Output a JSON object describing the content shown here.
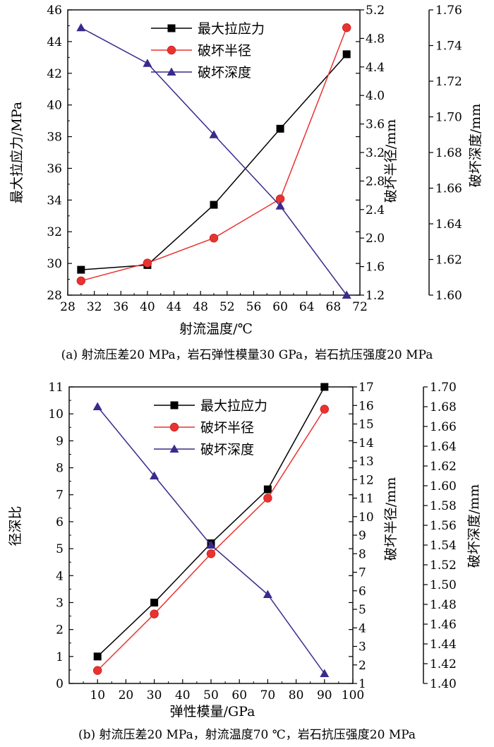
{
  "chart_data": [
    {
      "type": "line",
      "caption": "(a) 射流压差20 MPa，岩石弹性模量30 GPa，岩石抗压强度20 MPa",
      "xlabel": "射流温度/℃",
      "ylabel_left": "最大拉应力/MPa",
      "ylabel_right1": "破坏半径/mm",
      "ylabel_right2": "破坏深度/mm",
      "xlim": [
        28,
        72
      ],
      "ylim_left": [
        28,
        46
      ],
      "ylim_right1": [
        1.2,
        5.2
      ],
      "ylim_right2": [
        1.6,
        1.76
      ],
      "xticks": [
        "28",
        "32",
        "36",
        "40",
        "44",
        "48",
        "52",
        "56",
        "60",
        "64",
        "68",
        "72"
      ],
      "yticks_left": [
        "28",
        "30",
        "32",
        "34",
        "36",
        "38",
        "40",
        "42",
        "44",
        "46"
      ],
      "yticks_right1": [
        "1.2",
        "1.6",
        "2.0",
        "2.4",
        "2.8",
        "3.2",
        "3.6",
        "4.0",
        "4.4",
        "4.8",
        "5.2"
      ],
      "yticks_right2": [
        "1.60",
        "1.62",
        "1.64",
        "1.66",
        "1.68",
        "1.70",
        "1.72",
        "1.74",
        "1.76"
      ],
      "legend_position": "top-center",
      "series": [
        {
          "name": "最大拉应力",
          "axis": "left",
          "marker": "square",
          "color": "#000000",
          "x": [
            30,
            40,
            50,
            60,
            70
          ],
          "values": [
            29.6,
            29.9,
            33.7,
            38.5,
            43.2
          ]
        },
        {
          "name": "破坏半径",
          "axis": "right1",
          "marker": "circle",
          "color": "#e8332f",
          "x": [
            30,
            40,
            50,
            60,
            70
          ],
          "values": [
            1.4,
            1.65,
            2.0,
            2.55,
            4.95
          ]
        },
        {
          "name": "破坏深度",
          "axis": "right2",
          "marker": "triangle",
          "color": "#3a2a8c",
          "x": [
            30,
            40,
            50,
            60,
            70
          ],
          "values": [
            1.75,
            1.73,
            1.69,
            1.65,
            1.6
          ]
        }
      ]
    },
    {
      "type": "line",
      "caption": "(b) 射流压差20 MPa，射流温度70 ℃，岩石抗压强度20 MPa",
      "xlabel": "弹性模量/GPa",
      "ylabel_left": "径深比",
      "ylabel_right1": "破坏半径/mm",
      "ylabel_right2": "破坏深度/mm",
      "xlim": [
        0,
        100
      ],
      "ylim_left": [
        0,
        11
      ],
      "ylim_right1": [
        1,
        17
      ],
      "ylim_right2": [
        1.4,
        1.7
      ],
      "xticks": [
        "10",
        "20",
        "30",
        "40",
        "50",
        "60",
        "70",
        "80",
        "90",
        "100"
      ],
      "yticks_left": [
        "0",
        "1",
        "2",
        "3",
        "4",
        "5",
        "6",
        "7",
        "8",
        "9",
        "10",
        "11"
      ],
      "yticks_right1": [
        "1",
        "2",
        "3",
        "4",
        "5",
        "6",
        "7",
        "8",
        "9",
        "10",
        "11",
        "12",
        "13",
        "14",
        "15",
        "16",
        "17"
      ],
      "yticks_right2": [
        "1.40",
        "1.42",
        "1.44",
        "1.46",
        "1.48",
        "1.50",
        "1.52",
        "1.54",
        "1.56",
        "1.58",
        "1.60",
        "1.62",
        "1.64",
        "1.66",
        "1.68",
        "1.70"
      ],
      "legend_position": "top-center",
      "series": [
        {
          "name": "最大拉应力",
          "axis": "left",
          "marker": "square",
          "color": "#000000",
          "x": [
            10,
            30,
            50,
            70,
            90
          ],
          "values": [
            1.0,
            3.0,
            5.2,
            7.2,
            11.0
          ]
        },
        {
          "name": "破坏半径",
          "axis": "right1",
          "marker": "circle",
          "color": "#e8332f",
          "x": [
            10,
            30,
            50,
            70,
            90
          ],
          "values": [
            1.7,
            4.75,
            8.0,
            11.0,
            15.8
          ]
        },
        {
          "name": "破坏深度",
          "axis": "right2",
          "marker": "triangle",
          "color": "#3a2a8c",
          "x": [
            10,
            30,
            50,
            70,
            90
          ],
          "values": [
            1.68,
            1.61,
            1.54,
            1.49,
            1.41
          ]
        }
      ]
    }
  ]
}
